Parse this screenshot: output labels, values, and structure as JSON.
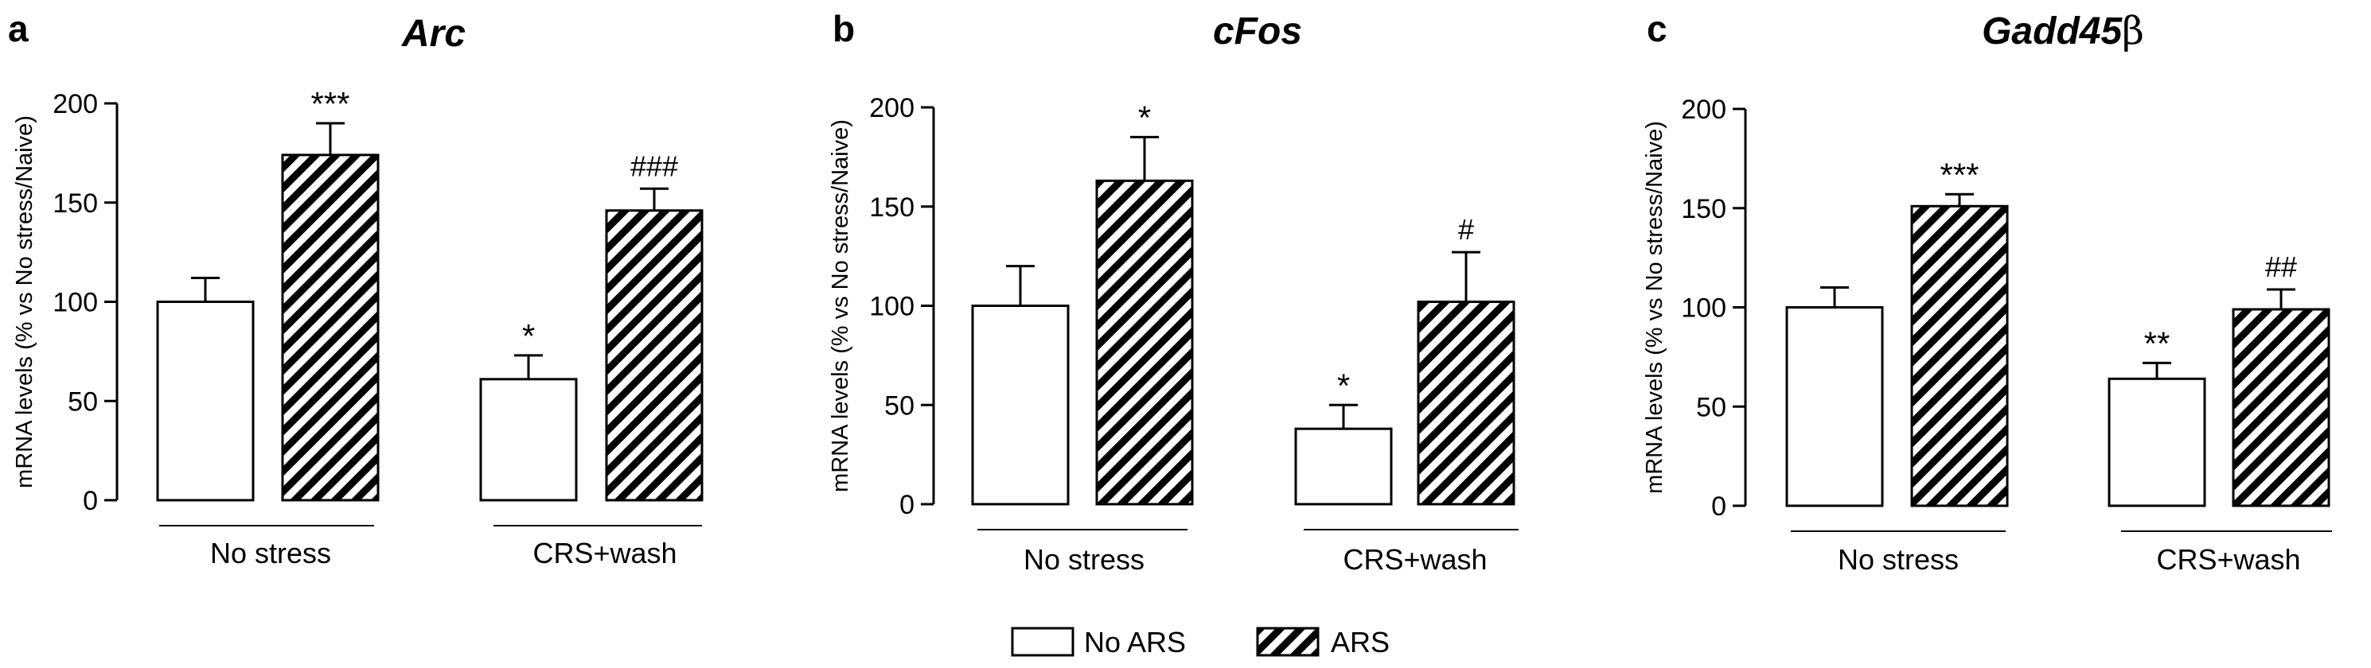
{
  "figure": {
    "legend": [
      {
        "label": "No ARS",
        "pattern": "open"
      },
      {
        "label": "ARS",
        "pattern": "hatched"
      }
    ],
    "colors": {
      "bar_fill_open": "#ffffff",
      "bar_hatch": "#000000",
      "stroke": "#000000"
    }
  },
  "chart_data": [
    {
      "panel": "a",
      "type": "bar",
      "title": "Arc",
      "ylabel": "mRNA levels (% vs No stress/Naive)",
      "ylim": [
        0,
        200
      ],
      "yticks": [
        0,
        50,
        100,
        150,
        200
      ],
      "groups": [
        "No stress",
        "CRS+wash"
      ],
      "series": [
        {
          "name": "No ARS",
          "values": [
            100,
            61
          ],
          "errors": [
            12,
            12
          ],
          "annotations": [
            "",
            "*"
          ]
        },
        {
          "name": "ARS",
          "values": [
            174,
            146
          ],
          "errors": [
            16,
            11
          ],
          "annotations": [
            "***",
            "###"
          ]
        }
      ]
    },
    {
      "panel": "b",
      "type": "bar",
      "title": "cFos",
      "ylabel": "mRNA levels (% vs No stress/Naive)",
      "ylim": [
        0,
        200
      ],
      "yticks": [
        0,
        50,
        100,
        150,
        200
      ],
      "groups": [
        "No stress",
        "CRS+wash"
      ],
      "series": [
        {
          "name": "No ARS",
          "values": [
            100,
            38
          ],
          "errors": [
            20,
            12
          ],
          "annotations": [
            "",
            "*"
          ]
        },
        {
          "name": "ARS",
          "values": [
            163,
            102
          ],
          "errors": [
            22,
            25
          ],
          "annotations": [
            "*",
            "#"
          ]
        }
      ]
    },
    {
      "panel": "c",
      "type": "bar",
      "title": "Gadd45β",
      "ylabel": "mRNA levels (% vs No stress/Naive)",
      "ylim": [
        0,
        200
      ],
      "yticks": [
        0,
        50,
        100,
        150,
        200
      ],
      "groups": [
        "No stress",
        "CRS+wash"
      ],
      "series": [
        {
          "name": "No ARS",
          "values": [
            100,
            64
          ],
          "errors": [
            10,
            8
          ],
          "annotations": [
            "",
            "**"
          ]
        },
        {
          "name": "ARS",
          "values": [
            151,
            99
          ],
          "errors": [
            6,
            10
          ],
          "annotations": [
            "***",
            "##"
          ]
        }
      ]
    }
  ]
}
